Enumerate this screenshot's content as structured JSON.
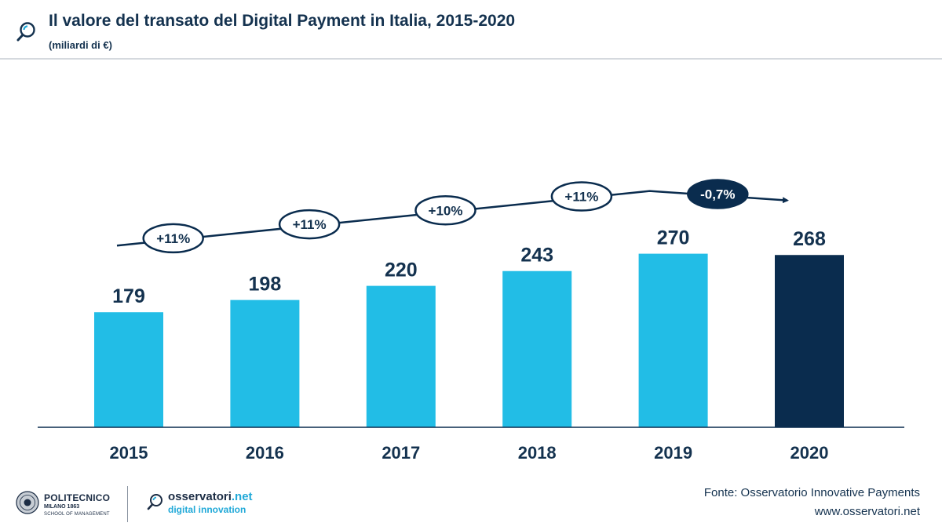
{
  "header": {
    "title": "Il valore del transato del Digital Payment in Italia, 2015-2020",
    "subtitle": "(miliardi di €)",
    "icon": "magnifier-logo-icon"
  },
  "chart_data": {
    "type": "bar",
    "title": "Il valore del transato del Digital Payment in Italia, 2015-2020",
    "ylabel": "miliardi di €",
    "xlabel": "",
    "categories": [
      "2015",
      "2016",
      "2017",
      "2018",
      "2019",
      "2020"
    ],
    "values": [
      179,
      198,
      220,
      243,
      270,
      268
    ],
    "value_labels": [
      "179",
      "198",
      "220",
      "243",
      "270",
      "268"
    ],
    "ylim": [
      0,
      300
    ],
    "grid": false,
    "legend": "none",
    "bar_colors": [
      "#22bde6",
      "#22bde6",
      "#22bde6",
      "#22bde6",
      "#22bde6",
      "#0a2c4e"
    ],
    "growth_annotations": [
      {
        "between": [
          "2015",
          "2016"
        ],
        "label": "+11%",
        "highlight": false
      },
      {
        "between": [
          "2016",
          "2017"
        ],
        "label": "+11%",
        "highlight": false
      },
      {
        "between": [
          "2017",
          "2018"
        ],
        "label": "+10%",
        "highlight": false
      },
      {
        "between": [
          "2018",
          "2019"
        ],
        "label": "+11%",
        "highlight": false
      },
      {
        "between": [
          "2019",
          "2020"
        ],
        "label": "-0,7%",
        "highlight": true
      }
    ]
  },
  "footer": {
    "polimi_name": "POLITECNICO",
    "polimi_city": "MILANO 1863",
    "polimi_school": "SCHOOL OF MANAGEMENT",
    "oss_name": "osservatori",
    "oss_suffix": ".net",
    "oss_tag": "digital innovation",
    "source": "Fonte: Osservatorio Innovative Payments",
    "website": "www.osservatori.net"
  },
  "colors": {
    "bar": "#22bde6",
    "bar_highlight": "#0a2c4e",
    "text_dark": "#14324f",
    "accent": "#21a9d8"
  }
}
